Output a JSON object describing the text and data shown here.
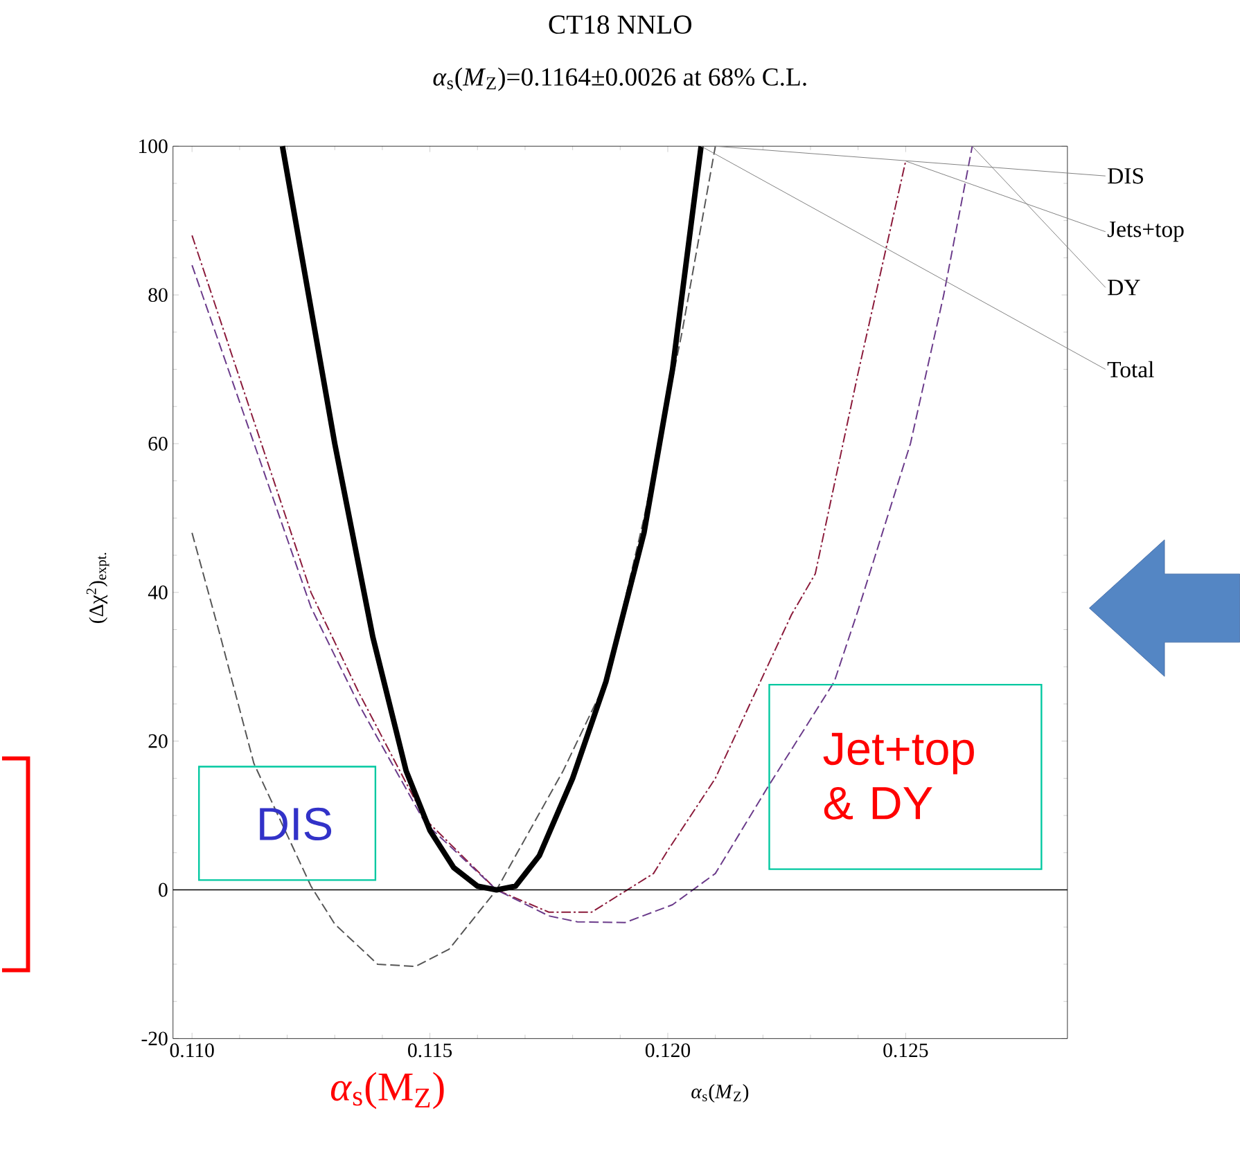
{
  "chart_data": {
    "type": "line",
    "title": "CT18 NNLO",
    "subtitle": "*α*$_{s}$(*M*$_{Z}$)=0.1164±0.0026 at 68% C.L.",
    "xlabel": "*α*$_{s}$(*M*$_{Z}$)",
    "ylabel": "(Δχ$^{2}$)$_{expt.}$",
    "xlim": [
      0.1096,
      0.1284
    ],
    "ylim": [
      -20,
      100
    ],
    "xticks": [
      {
        "value": 0.11,
        "label": "0.110"
      },
      {
        "value": 0.115,
        "label": "0.115"
      },
      {
        "value": 0.12,
        "label": "0.120"
      },
      {
        "value": 0.125,
        "label": "0.125"
      }
    ],
    "yticks": [
      -20,
      0,
      20,
      40,
      60,
      80,
      100
    ],
    "grid": false,
    "legend": false,
    "marker": "none",
    "ref_lines": [
      {
        "axis": "y",
        "value": 0,
        "color": "#000000"
      }
    ],
    "series": [
      {
        "name": "DIS",
        "color": "#555555",
        "line_style": "dashed",
        "x": [
          0.11,
          0.1106,
          0.1113,
          0.1125,
          0.113,
          0.1139,
          0.1147,
          0.1154,
          0.1164,
          0.1178,
          0.1187,
          0.1195,
          0.1203,
          0.121
        ],
        "values": [
          48,
          34,
          17,
          0.5,
          -4.6,
          -10,
          -10.3,
          -8,
          0,
          16,
          28,
          50,
          75,
          100
        ]
      },
      {
        "name": "Jets+top",
        "color": "#8b1a3a",
        "line_style": "dashdotted",
        "x": [
          0.11,
          0.1125,
          0.1135,
          0.1149,
          0.1164,
          0.1175,
          0.1184,
          0.1197,
          0.12,
          0.121,
          0.1226,
          0.1231,
          0.124,
          0.125
        ],
        "values": [
          88,
          40,
          26.6,
          9.5,
          0,
          -3,
          -3,
          2.2,
          5.3,
          15,
          37,
          42.5,
          69.5,
          98
        ]
      },
      {
        "name": "DY",
        "color": "#6a3a8a",
        "line_style": "dashed",
        "x": [
          0.11,
          0.1125,
          0.1135,
          0.1149,
          0.1164,
          0.1175,
          0.1181,
          0.1191,
          0.1201,
          0.121,
          0.1221,
          0.1235,
          0.124,
          0.1251,
          0.1258,
          0.1264
        ],
        "values": [
          84,
          38,
          25,
          9,
          0,
          -3.5,
          -4.3,
          -4.4,
          -2,
          2.2,
          13.8,
          28,
          37.6,
          60,
          80,
          100
        ]
      },
      {
        "name": "Total",
        "color": "#000000",
        "line_style": "solid",
        "x": [
          0.1119,
          0.113,
          0.1138,
          0.1145,
          0.115,
          0.1155,
          0.116,
          0.1164,
          0.1168,
          0.1173,
          0.118,
          0.1187,
          0.1195,
          0.1201,
          0.1207
        ],
        "values": [
          100,
          60,
          34,
          16,
          8,
          3,
          0.5,
          0,
          0.5,
          4.6,
          15,
          28,
          48,
          70,
          100
        ]
      }
    ],
    "annotations": [
      "DIS",
      "Jet+top & DY",
      "*α*$_{s}$(M$_{Z}$)"
    ]
  }
}
